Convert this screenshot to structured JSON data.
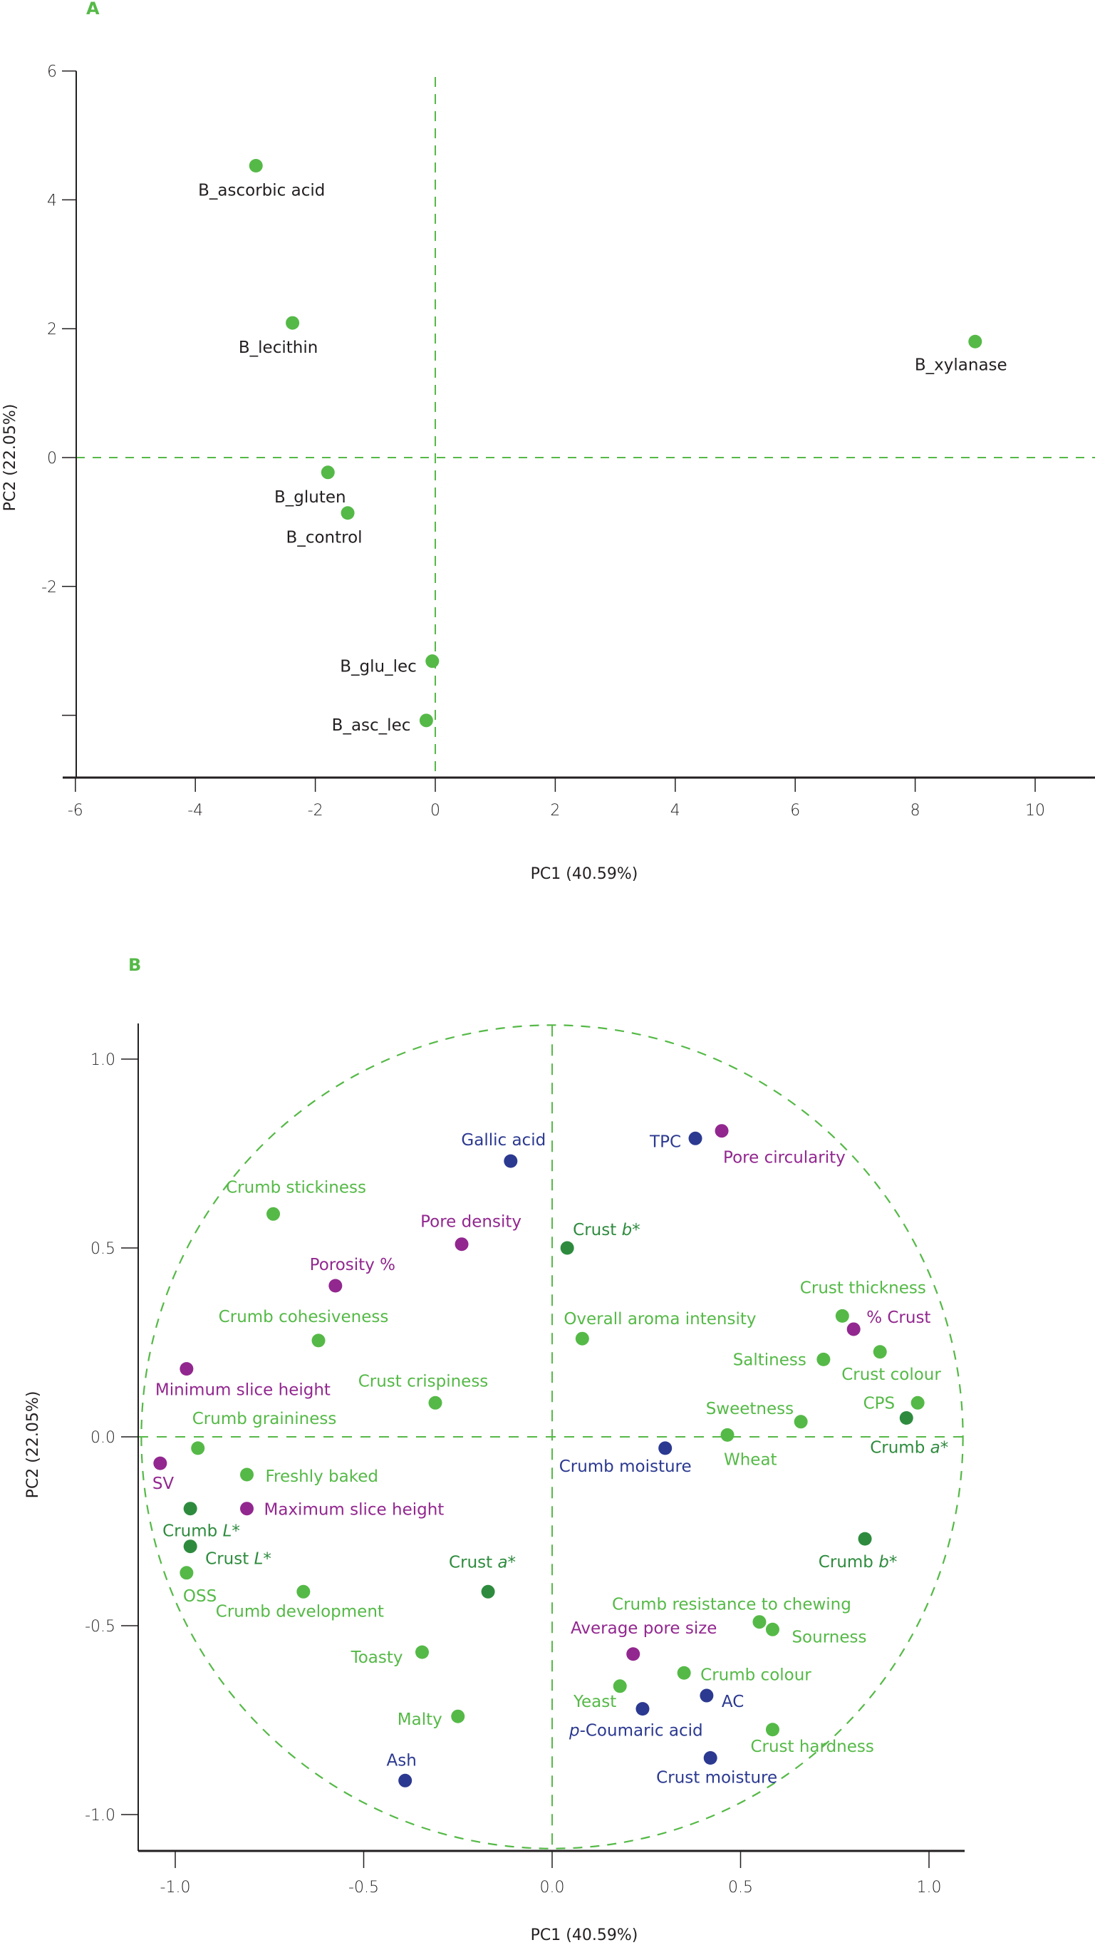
{
  "colors": {
    "group_light_green": "#55b947",
    "group_dark_green": "#2e8b3e",
    "group_blue": "#2b3990",
    "group_purple": "#92278f",
    "axis": "#231f20",
    "reference_line": "#55b947"
  },
  "chart_data": [
    {
      "panel": "A",
      "type": "scatter",
      "title": "",
      "xlabel": "PC1 (40.59%)",
      "ylabel": "PC2 (22.05%)",
      "xlim": [
        -6,
        11
      ],
      "ylim": [
        -5,
        6
      ],
      "xticks": [
        -6,
        -4,
        -2,
        0,
        2,
        4,
        6,
        8,
        10
      ],
      "xtick_labels": [
        "-6",
        "-4",
        "-2",
        "0",
        "2",
        "4",
        "6",
        "8",
        "10"
      ],
      "yticks": [
        6,
        4,
        2,
        0,
        -2,
        -4
      ],
      "ytick_labels": [
        "6",
        "4",
        "2",
        "0",
        "-2",
        ""
      ],
      "grid": false,
      "reference_lines": {
        "x": 0,
        "y": 0,
        "style": "dashed"
      },
      "points": [
        {
          "label": "B_ascorbic acid",
          "x": -2.99,
          "y": 4.53
        },
        {
          "label": "B_lecithin",
          "x": -2.38,
          "y": 2.09
        },
        {
          "label": "B_xylanase",
          "x": 9.0,
          "y": 1.8
        },
        {
          "label": "B_gluten",
          "x": -1.79,
          "y": -0.23
        },
        {
          "label": "B_control",
          "x": -1.46,
          "y": -0.86
        },
        {
          "label": "B_glu_lec",
          "x": -0.05,
          "y": -3.16
        },
        {
          "label": "B_asc_lec",
          "x": -0.15,
          "y": -4.08
        }
      ]
    },
    {
      "panel": "B",
      "type": "scatter",
      "title": "",
      "xlabel": "PC1 (40.59%)",
      "ylabel": "PC2 (22.05%)",
      "xlim": [
        -1.1,
        1.1
      ],
      "ylim": [
        -1.1,
        1.1
      ],
      "xticks": [
        -1.0,
        -0.5,
        0.0,
        0.5,
        1.0
      ],
      "xtick_labels": [
        "-1.0",
        "-0.5",
        "0.0",
        "0.5",
        "1.0"
      ],
      "yticks": [
        1.0,
        0.5,
        0.0,
        -0.5,
        -1.0
      ],
      "ytick_labels": [
        "1.0",
        "0.5",
        "0.0",
        "-0.5",
        "-1.0"
      ],
      "grid": false,
      "reference_lines": {
        "x": 0,
        "y": 0,
        "style": "dashed"
      },
      "correlation_circle_radius": 1.09,
      "points": [
        {
          "label": "Gallic acid",
          "italic": "",
          "group": "blue",
          "x": -0.11,
          "y": 0.73
        },
        {
          "label": "TPC",
          "italic": "",
          "group": "blue",
          "x": 0.38,
          "y": 0.79
        },
        {
          "label": "Pore circularity",
          "italic": "",
          "group": "purple",
          "x": 0.45,
          "y": 0.81
        },
        {
          "label": "Crumb stickiness",
          "italic": "",
          "group": "light_green",
          "x": -0.74,
          "y": 0.59
        },
        {
          "label": "Pore density",
          "italic": "",
          "group": "purple",
          "x": -0.24,
          "y": 0.51
        },
        {
          "label": "Crust b*",
          "italic": "b*",
          "group": "dark_green",
          "x": 0.04,
          "y": 0.5
        },
        {
          "label": "Porosity %",
          "italic": "",
          "group": "purple",
          "x": -0.575,
          "y": 0.4
        },
        {
          "label": "Crust thickness",
          "italic": "",
          "group": "light_green",
          "x": 0.77,
          "y": 0.32
        },
        {
          "label": "% Crust",
          "italic": "",
          "group": "purple",
          "x": 0.8,
          "y": 0.285
        },
        {
          "label": "Overall aroma intensity",
          "italic": "",
          "group": "light_green",
          "x": 0.08,
          "y": 0.26
        },
        {
          "label": "Crumb cohesiveness",
          "italic": "",
          "group": "light_green",
          "x": -0.62,
          "y": 0.255
        },
        {
          "label": "Saltiness",
          "italic": "",
          "group": "light_green",
          "x": 0.72,
          "y": 0.205
        },
        {
          "label": "Crust colour",
          "italic": "",
          "group": "light_green",
          "x": 0.87,
          "y": 0.225
        },
        {
          "label": "Minimum slice height",
          "italic": "",
          "group": "purple",
          "x": -0.97,
          "y": 0.18
        },
        {
          "label": "Crust crispiness",
          "italic": "",
          "group": "light_green",
          "x": -0.31,
          "y": 0.09
        },
        {
          "label": "Sweetness",
          "italic": "",
          "group": "light_green",
          "x": 0.66,
          "y": 0.04
        },
        {
          "label": "CPS",
          "italic": "",
          "group": "light_green",
          "x": 0.97,
          "y": 0.09
        },
        {
          "label": "Crumb graininess",
          "italic": "",
          "group": "light_green",
          "x": -0.94,
          "y": -0.03
        },
        {
          "label": "Crumb a*",
          "italic": "a*",
          "group": "dark_green",
          "x": 0.94,
          "y": 0.05
        },
        {
          "label": "Wheat",
          "italic": "",
          "group": "light_green",
          "x": 0.465,
          "y": 0.005
        },
        {
          "label": "Crumb moisture",
          "italic": "",
          "group": "blue",
          "x": 0.3,
          "y": -0.03
        },
        {
          "label": "SV",
          "italic": "",
          "group": "purple",
          "x": -1.04,
          "y": -0.07
        },
        {
          "label": "Freshly baked",
          "italic": "",
          "group": "light_green",
          "x": -0.81,
          "y": -0.1
        },
        {
          "label": "Maximum slice height",
          "italic": "",
          "group": "purple",
          "x": -0.81,
          "y": -0.19
        },
        {
          "label": "Crumb L*",
          "italic": "L*",
          "group": "dark_green",
          "x": -0.96,
          "y": -0.19
        },
        {
          "label": "Crust L*",
          "italic": "L*",
          "group": "dark_green",
          "x": -0.96,
          "y": -0.29
        },
        {
          "label": "Crumb b*",
          "italic": "b*",
          "group": "dark_green",
          "x": 0.83,
          "y": -0.27
        },
        {
          "label": "OSS",
          "italic": "",
          "group": "light_green",
          "x": -0.97,
          "y": -0.36
        },
        {
          "label": "Crust a*",
          "italic": "a*",
          "group": "dark_green",
          "x": -0.17,
          "y": -0.41
        },
        {
          "label": "Crumb development",
          "italic": "",
          "group": "light_green",
          "x": -0.66,
          "y": -0.41
        },
        {
          "label": "Crumb resistance to chewing",
          "italic": "",
          "group": "light_green",
          "x": 0.55,
          "y": -0.49
        },
        {
          "label": "Sourness",
          "italic": "",
          "group": "light_green",
          "x": 0.585,
          "y": -0.51
        },
        {
          "label": "Average pore size",
          "italic": "",
          "group": "purple",
          "x": 0.215,
          "y": -0.575
        },
        {
          "label": "Toasty",
          "italic": "",
          "group": "light_green",
          "x": -0.345,
          "y": -0.57
        },
        {
          "label": "Crumb colour",
          "italic": "",
          "group": "light_green",
          "x": 0.35,
          "y": -0.625
        },
        {
          "label": "Yeast",
          "italic": "",
          "group": "light_green",
          "x": 0.18,
          "y": -0.66
        },
        {
          "label": "AC",
          "italic": "",
          "group": "blue",
          "x": 0.41,
          "y": -0.685
        },
        {
          "label": "Malty",
          "italic": "",
          "group": "light_green",
          "x": -0.25,
          "y": -0.74
        },
        {
          "label": "p-Coumaric acid",
          "italic": "p",
          "group": "blue",
          "x": 0.24,
          "y": -0.72
        },
        {
          "label": "Crust hardness",
          "italic": "",
          "group": "light_green",
          "x": 0.585,
          "y": -0.775
        },
        {
          "label": "Ash",
          "italic": "",
          "group": "blue",
          "x": -0.39,
          "y": -0.91
        },
        {
          "label": "Crust moisture",
          "italic": "",
          "group": "blue",
          "x": 0.42,
          "y": -0.85
        }
      ]
    }
  ]
}
